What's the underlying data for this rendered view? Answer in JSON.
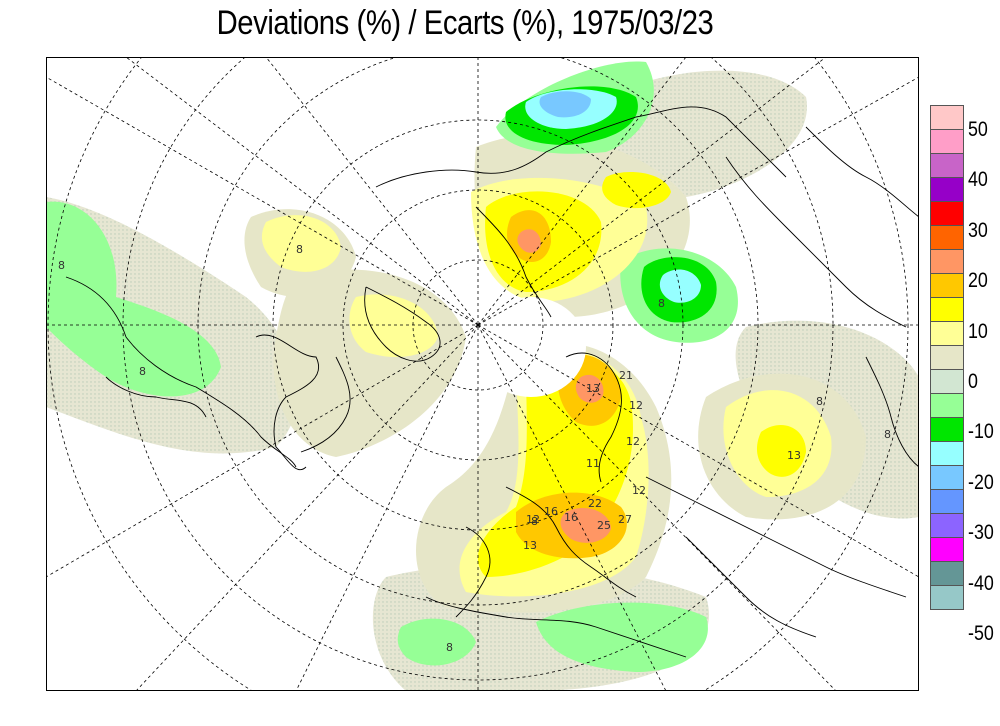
{
  "title": "Deviations (%) / Ecarts (%), 1975/03/23",
  "legend": {
    "labels": [
      "50",
      "40",
      "30",
      "20",
      "10",
      "0",
      "-10",
      "-20",
      "-30",
      "-40",
      "-50"
    ],
    "colors": [
      "#ffc8c8",
      "#ff9ec8",
      "#c864c8",
      "#9600c8",
      "#ff0000",
      "#ff6400",
      "#ff9664",
      "#ffc800",
      "#ffff00",
      "#ffff96",
      "#e6e6c8",
      "#d2e6d2",
      "#96ff96",
      "#00e600",
      "#96ffff",
      "#78c8ff",
      "#6496ff",
      "#8c64ff",
      "#ff00ff",
      "#649696",
      "#96c8c8"
    ]
  },
  "contour_labels": [
    "8",
    "8",
    "8",
    "8",
    "8",
    "8",
    "8",
    "13",
    "21",
    "12",
    "12",
    "11",
    "12",
    "16",
    "22",
    "25",
    "27",
    "12",
    "13",
    "13",
    "8",
    "16"
  ]
}
